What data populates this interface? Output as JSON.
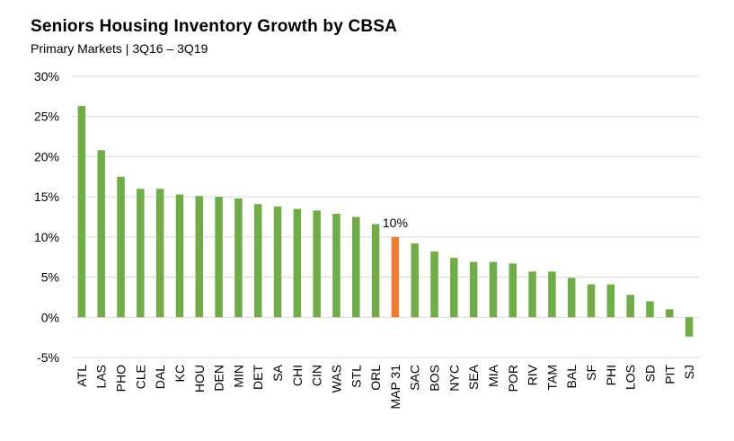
{
  "chart_data": {
    "type": "bar",
    "title": "Seniors Housing Inventory Growth by CBSA",
    "subtitle": "Primary Markets  | 3Q16 – 3Q19",
    "xlabel": "",
    "ylabel": "",
    "ylim": [
      -5,
      30
    ],
    "yticks": [
      -5,
      0,
      5,
      10,
      15,
      20,
      25,
      30
    ],
    "ytick_suffix": "%",
    "grid": true,
    "categories": [
      "ATL",
      "LAS",
      "PHO",
      "CLE",
      "DAL",
      "KC",
      "HOU",
      "DEN",
      "MIN",
      "DET",
      "SA",
      "CHI",
      "CIN",
      "WAS",
      "STL",
      "ORL",
      "MAP 31",
      "SAC",
      "BOS",
      "NYC",
      "SEA",
      "MIA",
      "POR",
      "RIV",
      "TAM",
      "BAL",
      "SF",
      "PHI",
      "LOS",
      "SD",
      "PIT",
      "SJ"
    ],
    "values": [
      26.3,
      20.8,
      17.5,
      16.0,
      16.0,
      15.3,
      15.1,
      15.0,
      14.8,
      14.1,
      13.8,
      13.5,
      13.3,
      12.9,
      12.5,
      11.6,
      10.0,
      9.2,
      8.2,
      7.4,
      6.9,
      6.9,
      6.7,
      5.7,
      5.7,
      4.9,
      4.1,
      4.1,
      2.8,
      2.0,
      1.0,
      -2.4
    ],
    "highlight_category": "MAP 31",
    "highlight_label": "10%",
    "colors": {
      "bar": "#70AD47",
      "highlight": "#ED7D31",
      "grid": "#D9D9D9",
      "text": "#000000"
    }
  }
}
